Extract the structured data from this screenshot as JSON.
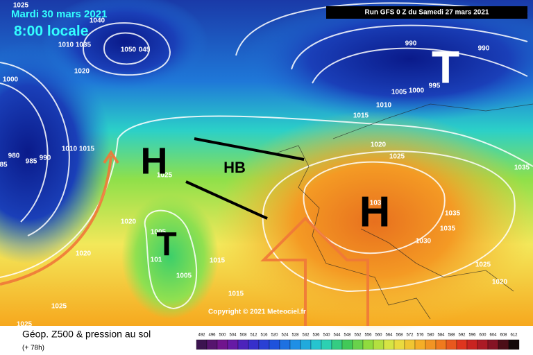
{
  "header": {
    "date": "Mardi 30 mars 2021",
    "time": "8:00 locale",
    "run": "Run GFS 0 Z du Samedi 27 mars 2021"
  },
  "map": {
    "systems": [
      "H",
      "T",
      "HB",
      "H",
      "T"
    ],
    "isobar_labels": [
      "1025",
      "1040",
      "1010",
      "1035",
      "1050",
      "045",
      "1020",
      "1000",
      "980",
      "85",
      "985",
      "990",
      "1010",
      "1015",
      "1025",
      "1020",
      "1005",
      "101",
      "1005",
      "1015",
      "1015",
      "1020",
      "1025",
      "1025",
      "990",
      "990",
      "995",
      "1005",
      "1000",
      "1010",
      "1015",
      "1020",
      "1025",
      "1035",
      "103",
      "1035",
      "1035",
      "1030",
      "1025",
      "1020"
    ],
    "copyright": "Copyright © 2021 Meteociel.fr"
  },
  "footer": {
    "title": "Géop. Z500 & pression au sol",
    "lead": "(+ 78h)",
    "scale": [
      492,
      496,
      500,
      504,
      508,
      512,
      516,
      520,
      524,
      528,
      532,
      536,
      540,
      544,
      548,
      552,
      556,
      560,
      564,
      568,
      572,
      576,
      580,
      584,
      588,
      592,
      596,
      600,
      604,
      608,
      612
    ]
  }
}
